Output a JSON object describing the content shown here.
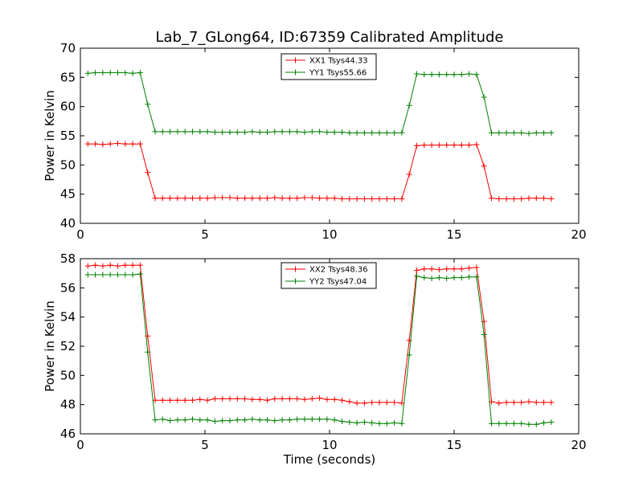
{
  "title": "Lab_7_GLong64, ID:67359 Calibrated Amplitude",
  "chart_data": [
    {
      "type": "line",
      "title": "Lab_7_GLong64, ID:67359 Calibrated Amplitude",
      "ylabel": "Power in Kelvin",
      "xlabel": "",
      "xlim": [
        0,
        20
      ],
      "ylim": [
        40,
        70
      ],
      "xticks": [
        "0",
        "5",
        "10",
        "15",
        "20"
      ],
      "yticks": [
        "40",
        "45",
        "50",
        "55",
        "60",
        "65",
        "70"
      ],
      "legend_position": "top-center",
      "x": [
        0.3,
        0.6,
        0.9,
        1.2,
        1.5,
        1.8,
        2.1,
        2.4,
        2.7,
        3.0,
        3.3,
        3.6,
        3.9,
        4.2,
        4.5,
        4.8,
        5.1,
        5.4,
        5.7,
        6.0,
        6.3,
        6.6,
        6.9,
        7.2,
        7.5,
        7.8,
        8.1,
        8.4,
        8.7,
        9.0,
        9.3,
        9.6,
        9.9,
        10.2,
        10.5,
        10.8,
        11.1,
        11.4,
        11.7,
        12.0,
        12.3,
        12.6,
        12.9,
        13.2,
        13.5,
        13.8,
        14.1,
        14.4,
        14.7,
        15.0,
        15.3,
        15.6,
        15.9,
        16.2,
        16.5,
        16.8,
        17.1,
        17.4,
        17.7,
        18.0,
        18.3,
        18.6,
        18.9
      ],
      "series": [
        {
          "name": "XX1 Tsys44.33",
          "color": "#ff0000",
          "values": [
            53.6,
            53.6,
            53.5,
            53.6,
            53.7,
            53.6,
            53.6,
            53.6,
            48.7,
            44.3,
            44.3,
            44.3,
            44.3,
            44.3,
            44.3,
            44.3,
            44.3,
            44.4,
            44.4,
            44.4,
            44.3,
            44.3,
            44.3,
            44.3,
            44.3,
            44.4,
            44.3,
            44.3,
            44.3,
            44.4,
            44.4,
            44.3,
            44.3,
            44.3,
            44.2,
            44.2,
            44.2,
            44.2,
            44.2,
            44.2,
            44.2,
            44.2,
            44.2,
            48.4,
            53.3,
            53.4,
            53.4,
            53.4,
            53.4,
            53.4,
            53.4,
            53.4,
            53.5,
            49.8,
            44.3,
            44.2,
            44.2,
            44.2,
            44.2,
            44.3,
            44.3,
            44.3,
            44.2
          ]
        },
        {
          "name": "YY1 Tsys55.66",
          "color": "#008000",
          "values": [
            65.7,
            65.8,
            65.8,
            65.8,
            65.8,
            65.8,
            65.7,
            65.8,
            60.4,
            55.7,
            55.7,
            55.7,
            55.7,
            55.7,
            55.7,
            55.7,
            55.7,
            55.6,
            55.6,
            55.6,
            55.6,
            55.6,
            55.7,
            55.6,
            55.6,
            55.7,
            55.7,
            55.7,
            55.7,
            55.6,
            55.7,
            55.7,
            55.6,
            55.6,
            55.6,
            55.5,
            55.5,
            55.5,
            55.5,
            55.5,
            55.5,
            55.5,
            55.5,
            60.2,
            65.6,
            65.5,
            65.5,
            65.5,
            65.5,
            65.5,
            65.5,
            65.6,
            65.5,
            61.6,
            55.5,
            55.5,
            55.5,
            55.5,
            55.5,
            55.4,
            55.5,
            55.5,
            55.5
          ]
        }
      ]
    },
    {
      "type": "line",
      "title": "",
      "ylabel": "Power in Kelvin",
      "xlabel": "Time (seconds)",
      "xlim": [
        0,
        20
      ],
      "ylim": [
        46,
        58
      ],
      "xticks": [
        "0",
        "5",
        "10",
        "15",
        "20"
      ],
      "yticks": [
        "46",
        "48",
        "50",
        "52",
        "54",
        "56",
        "58"
      ],
      "legend_position": "top-center",
      "x": [
        0.3,
        0.6,
        0.9,
        1.2,
        1.5,
        1.8,
        2.1,
        2.4,
        2.7,
        3.0,
        3.3,
        3.6,
        3.9,
        4.2,
        4.5,
        4.8,
        5.1,
        5.4,
        5.7,
        6.0,
        6.3,
        6.6,
        6.9,
        7.2,
        7.5,
        7.8,
        8.1,
        8.4,
        8.7,
        9.0,
        9.3,
        9.6,
        9.9,
        10.2,
        10.5,
        10.8,
        11.1,
        11.4,
        11.7,
        12.0,
        12.3,
        12.6,
        12.9,
        13.2,
        13.5,
        13.8,
        14.1,
        14.4,
        14.7,
        15.0,
        15.3,
        15.6,
        15.9,
        16.2,
        16.5,
        16.8,
        17.1,
        17.4,
        17.7,
        18.0,
        18.3,
        18.6,
        18.9
      ],
      "series": [
        {
          "name": "XX2 Tsys48.36",
          "color": "#ff0000",
          "values": [
            57.5,
            57.55,
            57.5,
            57.55,
            57.5,
            57.55,
            57.55,
            57.55,
            52.7,
            48.3,
            48.3,
            48.3,
            48.3,
            48.3,
            48.3,
            48.35,
            48.3,
            48.4,
            48.4,
            48.4,
            48.4,
            48.4,
            48.35,
            48.35,
            48.3,
            48.4,
            48.4,
            48.4,
            48.4,
            48.35,
            48.4,
            48.45,
            48.35,
            48.35,
            48.3,
            48.2,
            48.1,
            48.1,
            48.15,
            48.15,
            48.15,
            48.15,
            48.1,
            52.4,
            57.2,
            57.3,
            57.3,
            57.25,
            57.3,
            57.3,
            57.3,
            57.35,
            57.4,
            53.7,
            48.2,
            48.1,
            48.15,
            48.15,
            48.15,
            48.2,
            48.15,
            48.15,
            48.15
          ]
        },
        {
          "name": "YY2 Tsys47.04",
          "color": "#008000",
          "values": [
            56.9,
            56.9,
            56.9,
            56.9,
            56.9,
            56.9,
            56.9,
            56.95,
            51.6,
            46.95,
            47.0,
            46.9,
            46.95,
            46.95,
            47.0,
            46.95,
            46.95,
            46.85,
            46.9,
            46.9,
            46.95,
            46.95,
            47.0,
            46.95,
            46.95,
            46.9,
            46.95,
            46.95,
            47.0,
            47.0,
            47.0,
            47.0,
            47.0,
            46.95,
            46.85,
            46.8,
            46.75,
            46.8,
            46.75,
            46.7,
            46.7,
            46.75,
            46.7,
            51.4,
            56.8,
            56.7,
            56.65,
            56.7,
            56.65,
            56.7,
            56.7,
            56.75,
            56.75,
            52.8,
            46.7,
            46.7,
            46.7,
            46.7,
            46.7,
            46.65,
            46.65,
            46.75,
            46.8
          ]
        }
      ]
    }
  ]
}
